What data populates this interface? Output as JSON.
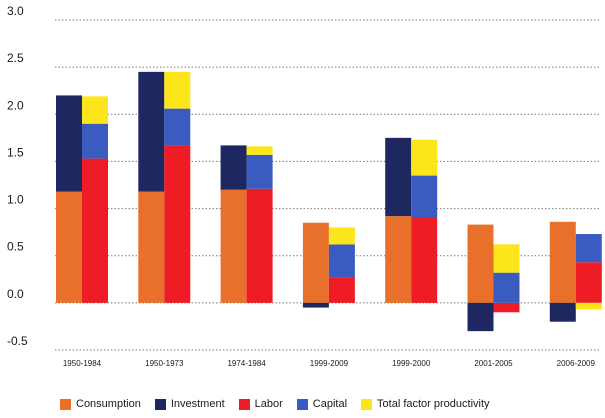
{
  "chart_data": {
    "type": "bar",
    "categories": [
      "1950-1984",
      "1950-1973",
      "1974-1984",
      "1999-2009",
      "1999-2000",
      "2001-2005",
      "2006-2009"
    ],
    "ylim": [
      -0.5,
      3.0
    ],
    "yticks": [
      "3.0",
      "2.5",
      "2.0",
      "1.5",
      "1.0",
      "0.5",
      "0.0",
      "-0.5"
    ],
    "ytick_values": [
      3.0,
      2.5,
      2.0,
      1.5,
      1.0,
      0.5,
      0.0,
      -0.5
    ],
    "grid": "dotted horizontal",
    "legend_position": "bottom",
    "stacks": [
      {
        "name": "Consumption",
        "color": "#e8702a",
        "stack": "left",
        "values": [
          1.18,
          1.18,
          1.2,
          0.85,
          0.92,
          0.83,
          0.86
        ]
      },
      {
        "name": "Investment",
        "color": "#1e2760",
        "stack": "left",
        "values": [
          1.02,
          1.27,
          0.47,
          -0.05,
          0.83,
          -0.3,
          -0.2
        ]
      },
      {
        "name": "Labor",
        "color": "#ee1c24",
        "stack": "right",
        "values": [
          1.53,
          1.67,
          1.21,
          0.27,
          0.9,
          -0.1,
          0.43
        ]
      },
      {
        "name": "Capital",
        "color": "#3a5bbf",
        "stack": "right",
        "values": [
          0.37,
          0.39,
          0.36,
          0.35,
          0.45,
          0.32,
          0.3
        ]
      },
      {
        "name": "Total factor productivity",
        "color": "#fce51a",
        "stack": "right",
        "values": [
          0.29,
          0.39,
          0.09,
          0.18,
          0.38,
          0.3,
          -0.07
        ]
      }
    ]
  },
  "legend": [
    {
      "label": "Consumption",
      "color": "#e8702a"
    },
    {
      "label": "Investment",
      "color": "#1e2760"
    },
    {
      "label": "Labor",
      "color": "#ee1c24"
    },
    {
      "label": "Capital",
      "color": "#3a5bbf"
    },
    {
      "label": "Total factor productivity",
      "color": "#fce51a"
    }
  ]
}
